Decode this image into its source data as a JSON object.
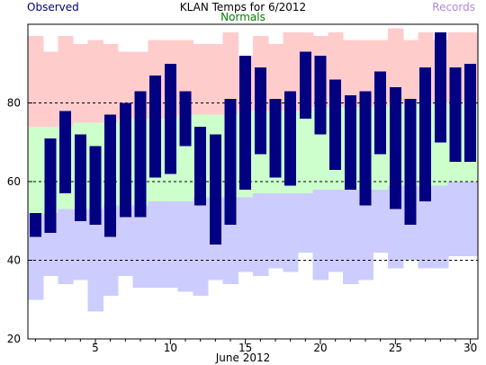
{
  "chart_data": {
    "type": "bar",
    "title": "KLAN Temps for 6/2012",
    "xlabel": "June 2012",
    "ylabel": "",
    "xlim": [
      0.5,
      30.5
    ],
    "ylim": [
      20,
      100
    ],
    "yticks": [
      20,
      40,
      60,
      80
    ],
    "xticks": [
      5,
      10,
      15,
      20,
      25,
      30
    ],
    "grid": "dashed at 40, 60, 80",
    "legend": {
      "observed": "Observed",
      "normals": "Normals",
      "records": "Records"
    },
    "colors": {
      "observed": "#000080",
      "normals": "#ccffcc",
      "records_high": "#ffcccc",
      "records_low": "#ccccff"
    },
    "days": [
      1,
      2,
      3,
      4,
      5,
      6,
      7,
      8,
      9,
      10,
      11,
      12,
      13,
      14,
      15,
      16,
      17,
      18,
      19,
      20,
      21,
      22,
      23,
      24,
      25,
      26,
      27,
      28,
      29,
      30
    ],
    "observed_high": [
      52,
      71,
      78,
      72,
      69,
      77,
      80,
      83,
      87,
      90,
      83,
      74,
      72,
      81,
      92,
      89,
      81,
      83,
      93,
      92,
      86,
      82,
      83,
      88,
      84,
      81,
      89,
      98,
      89,
      90
    ],
    "observed_low": [
      46,
      47,
      57,
      50,
      49,
      46,
      51,
      51,
      61,
      62,
      69,
      54,
      44,
      49,
      58,
      67,
      61,
      59,
      76,
      72,
      63,
      58,
      54,
      67,
      53,
      49,
      55,
      70,
      65,
      65
    ],
    "normal_high": [
      74,
      74,
      74,
      75,
      75,
      75,
      76,
      76,
      76,
      76,
      77,
      77,
      77,
      77,
      78,
      78,
      78,
      78,
      78,
      79,
      79,
      79,
      79,
      79,
      80,
      80,
      80,
      80,
      80,
      80
    ],
    "normal_low": [
      52,
      52,
      53,
      53,
      53,
      54,
      54,
      54,
      55,
      55,
      55,
      56,
      56,
      56,
      56,
      57,
      57,
      57,
      57,
      58,
      58,
      58,
      58,
      58,
      59,
      59,
      59,
      59,
      60,
      60
    ],
    "record_high": [
      97,
      93,
      97,
      95,
      96,
      95,
      93,
      93,
      96,
      96,
      96,
      95,
      95,
      98,
      92,
      97,
      95,
      98,
      98,
      97,
      98,
      96,
      96,
      96,
      99,
      96,
      98,
      96,
      98,
      98
    ],
    "record_low": [
      30,
      36,
      34,
      35,
      27,
      31,
      36,
      33,
      33,
      33,
      32,
      31,
      35,
      34,
      37,
      36,
      38,
      37,
      42,
      35,
      37,
      34,
      35,
      42,
      38,
      40,
      38,
      38,
      41,
      41
    ]
  }
}
